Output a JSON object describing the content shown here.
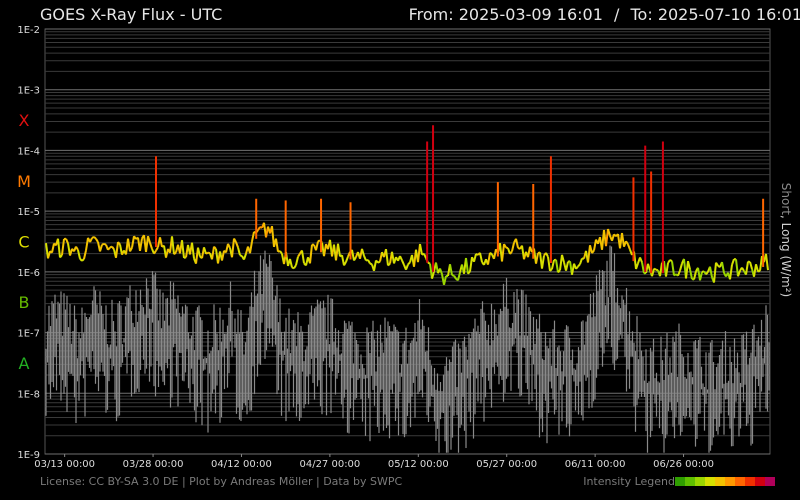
{
  "header": {
    "title": "GOES X-Ray Flux - UTC",
    "from_label": "From:",
    "from_value": "2025-03-09 16:01",
    "separator": "/",
    "to_label": "To:",
    "to_value": "2025-07-10 16:01"
  },
  "footer": {
    "license": "License: CC BY-SA 3.0 DE | Plot by Andreas Möller | Data by SWPC",
    "legend_label": "Intensity Legend",
    "legend_colors": [
      "#2f9e00",
      "#5fbf00",
      "#9ad600",
      "#d6e000",
      "#f2c200",
      "#ff9900",
      "#ff6600",
      "#f03000",
      "#d00010",
      "#b0005a"
    ]
  },
  "axis_right_label": {
    "short": "Short",
    "sep": ", ",
    "long": "Long (W/m²)"
  },
  "chart_data": {
    "type": "line",
    "title": "GOES X-Ray Flux - UTC",
    "yscale": "log",
    "ylim": [
      1e-09,
      0.01
    ],
    "xlim": [
      "2025-03-09 16:01",
      "2025-07-10 16:01"
    ],
    "y_ticks": [
      "1E-9",
      "1E-8",
      "1E-7",
      "1E-6",
      "1E-5",
      "1E-4",
      "1E-3",
      "1E-2"
    ],
    "x_ticks": [
      "03/13 00:00",
      "03/28 00:00",
      "04/12 00:00",
      "04/27 00:00",
      "05/12 00:00",
      "05/27 00:00",
      "06/11 00:00",
      "06/26 00:00"
    ],
    "flare_classes": [
      {
        "label": "A",
        "color": "#22b022",
        "level": 1e-08
      },
      {
        "label": "B",
        "color": "#66bb00",
        "level": 1e-07
      },
      {
        "label": "C",
        "color": "#dddd00",
        "level": 1e-06
      },
      {
        "label": "M",
        "color": "#ff7a00",
        "level": 1e-05
      },
      {
        "label": "X",
        "color": "#e01010",
        "level": 0.0001
      }
    ],
    "grid": true,
    "series": [
      {
        "name": "Long",
        "color_scale": "intensity",
        "x": [
          "2025-03-09",
          "2025-03-11",
          "2025-03-13",
          "2025-03-15",
          "2025-03-17",
          "2025-03-19",
          "2025-03-21",
          "2025-03-23",
          "2025-03-25",
          "2025-03-27",
          "2025-03-29",
          "2025-03-31",
          "2025-04-02",
          "2025-04-04",
          "2025-04-06",
          "2025-04-08",
          "2025-04-10",
          "2025-04-12",
          "2025-04-14",
          "2025-04-16",
          "2025-04-18",
          "2025-04-20",
          "2025-04-22",
          "2025-04-24",
          "2025-04-26",
          "2025-04-28",
          "2025-04-30",
          "2025-05-02",
          "2025-05-04",
          "2025-05-06",
          "2025-05-08",
          "2025-05-10",
          "2025-05-12",
          "2025-05-14",
          "2025-05-16",
          "2025-05-18",
          "2025-05-20",
          "2025-05-22",
          "2025-05-24",
          "2025-05-26",
          "2025-05-28",
          "2025-05-30",
          "2025-06-01",
          "2025-06-03",
          "2025-06-05",
          "2025-06-07",
          "2025-06-09",
          "2025-06-11",
          "2025-06-13",
          "2025-06-15",
          "2025-06-17",
          "2025-06-19",
          "2025-06-21",
          "2025-06-23",
          "2025-06-25",
          "2025-06-27",
          "2025-06-29",
          "2025-07-01",
          "2025-07-03",
          "2025-07-05",
          "2025-07-07",
          "2025-07-09",
          "2025-07-10"
        ],
        "y": [
          2e-06,
          2.2e-06,
          2.5e-06,
          1.8e-06,
          2.6e-06,
          2.2e-06,
          2e-06,
          2.4e-06,
          2.8e-06,
          3e-06,
          2.2e-06,
          2.5e-06,
          2e-06,
          1.8e-06,
          1.6e-06,
          2e-06,
          2.4e-06,
          1.4e-06,
          3.5e-06,
          5e-06,
          2e-06,
          1.5e-06,
          1.6e-06,
          2e-06,
          2.2e-06,
          1.8e-06,
          1.6e-06,
          1.5e-06,
          1.4e-06,
          1.6e-06,
          1.5e-06,
          1.3e-06,
          2e-06,
          1e-06,
          8e-07,
          9e-07,
          1.1e-06,
          1.4e-06,
          1.6e-06,
          2e-06,
          2.2e-06,
          1.8e-06,
          1.5e-06,
          1.4e-06,
          1.3e-06,
          1.2e-06,
          1.6e-06,
          2.4e-06,
          4e-06,
          3e-06,
          1.5e-06,
          1e-06,
          9e-07,
          1e-06,
          1.1e-06,
          1e-06,
          1e-06,
          9e-07,
          1e-06,
          1e-06,
          1.1e-06,
          1.2e-06,
          1.5e-06
        ]
      },
      {
        "name": "Short",
        "color": "#808080",
        "x": [
          "2025-03-09",
          "2025-03-11",
          "2025-03-13",
          "2025-03-15",
          "2025-03-17",
          "2025-03-19",
          "2025-03-21",
          "2025-03-23",
          "2025-03-25",
          "2025-03-27",
          "2025-03-29",
          "2025-03-31",
          "2025-04-02",
          "2025-04-04",
          "2025-04-06",
          "2025-04-08",
          "2025-04-10",
          "2025-04-12",
          "2025-04-14",
          "2025-04-16",
          "2025-04-18",
          "2025-04-20",
          "2025-04-22",
          "2025-04-24",
          "2025-04-26",
          "2025-04-28",
          "2025-04-30",
          "2025-05-02",
          "2025-05-04",
          "2025-05-06",
          "2025-05-08",
          "2025-05-10",
          "2025-05-12",
          "2025-05-14",
          "2025-05-16",
          "2025-05-18",
          "2025-05-20",
          "2025-05-22",
          "2025-05-24",
          "2025-05-26",
          "2025-05-28",
          "2025-05-30",
          "2025-06-01",
          "2025-06-03",
          "2025-06-05",
          "2025-06-07",
          "2025-06-09",
          "2025-06-11",
          "2025-06-13",
          "2025-06-15",
          "2025-06-17",
          "2025-06-19",
          "2025-06-21",
          "2025-06-23",
          "2025-06-25",
          "2025-06-27",
          "2025-06-29",
          "2025-07-01",
          "2025-07-03",
          "2025-07-05",
          "2025-07-07",
          "2025-07-09",
          "2025-07-10"
        ],
        "y": [
          5e-08,
          8e-08,
          6e-08,
          3e-08,
          1e-07,
          6e-08,
          4e-08,
          8e-08,
          1.5e-07,
          2e-07,
          7e-08,
          1e-07,
          6e-08,
          4e-08,
          3e-08,
          5e-08,
          1e-07,
          2e-08,
          2e-07,
          4e-07,
          6e-08,
          3e-08,
          3e-08,
          5e-08,
          6e-08,
          4e-08,
          3e-08,
          2e-08,
          2e-08,
          3e-08,
          2e-08,
          2e-08,
          6e-08,
          1e-08,
          8e-09,
          1e-08,
          2e-08,
          4e-08,
          6e-08,
          1e-07,
          1.2e-07,
          5e-08,
          3e-08,
          2e-08,
          2e-08,
          2e-08,
          5e-08,
          1.5e-07,
          4e-07,
          2e-07,
          4e-08,
          1.5e-08,
          1e-08,
          1.5e-08,
          2e-08,
          1.5e-08,
          1.2e-08,
          1e-08,
          1.5e-08,
          1.2e-08,
          2e-08,
          3e-08,
          6e-08
        ]
      }
    ],
    "flares": [
      {
        "x": "2025-03-28",
        "y": 8e-05
      },
      {
        "x": "2025-04-14",
        "y": 1.6e-05
      },
      {
        "x": "2025-04-19",
        "y": 1.5e-05
      },
      {
        "x": "2025-04-25",
        "y": 1.6e-05
      },
      {
        "x": "2025-04-30",
        "y": 1.4e-05
      },
      {
        "x": "2025-05-13",
        "y": 0.00014
      },
      {
        "x": "2025-05-14",
        "y": 0.00026
      },
      {
        "x": "2025-05-25",
        "y": 3e-05
      },
      {
        "x": "2025-05-31",
        "y": 2.8e-05
      },
      {
        "x": "2025-06-03",
        "y": 8e-05
      },
      {
        "x": "2025-06-17",
        "y": 3.6e-05
      },
      {
        "x": "2025-06-19",
        "y": 0.00012
      },
      {
        "x": "2025-06-20",
        "y": 4.5e-05
      },
      {
        "x": "2025-06-22",
        "y": 0.00014
      },
      {
        "x": "2025-07-09",
        "y": 1.6e-05
      }
    ]
  }
}
